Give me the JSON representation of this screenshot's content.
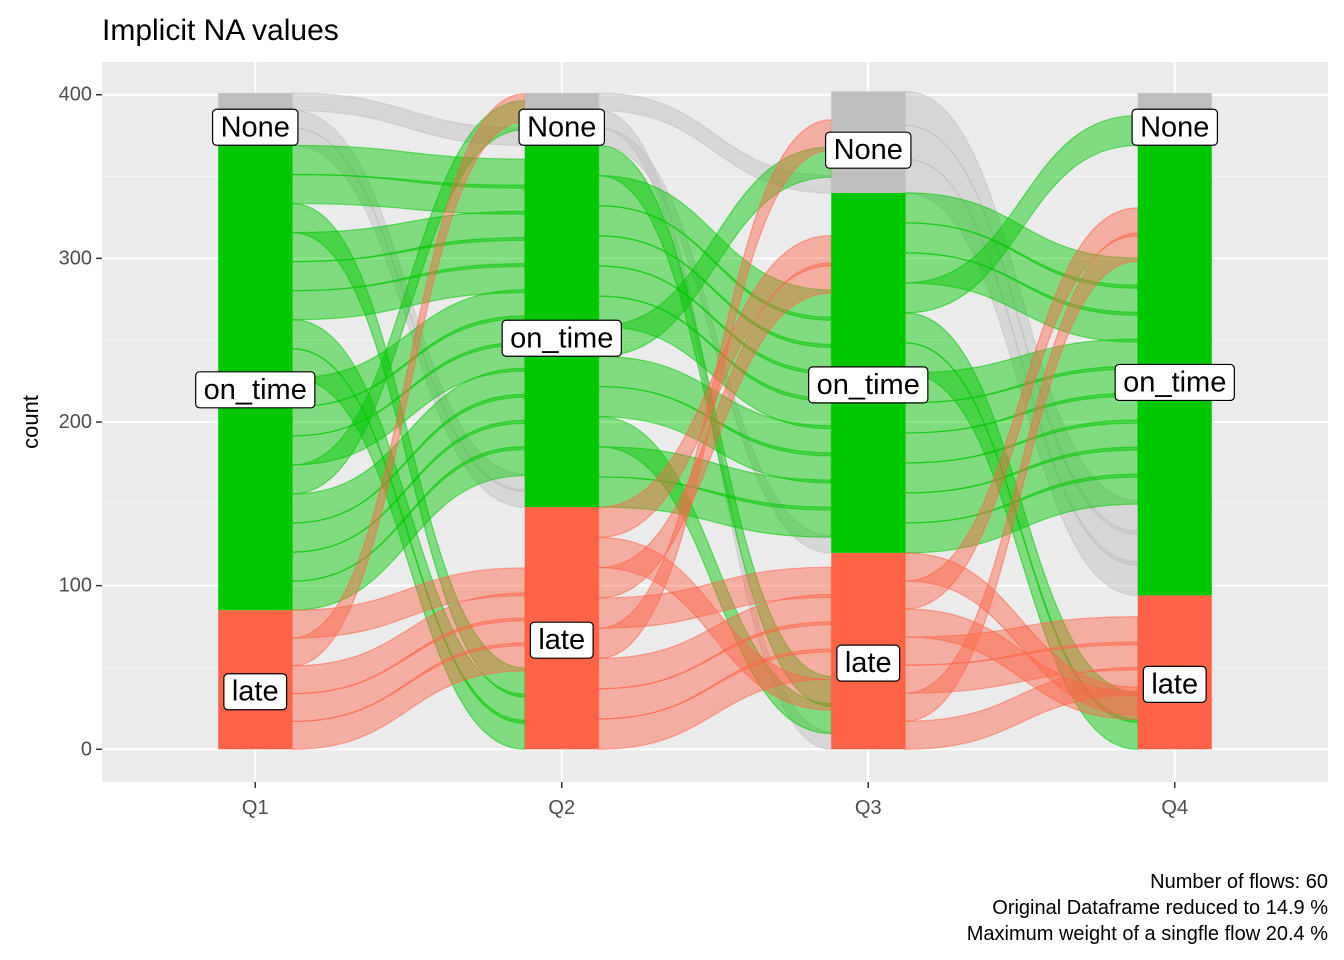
{
  "chart_data": {
    "type": "alluvial",
    "title": "Implicit NA values",
    "xlabel": "",
    "ylabel": "count",
    "ylim": [
      -20,
      420
    ],
    "yticks": [
      0,
      100,
      200,
      300,
      400
    ],
    "categories": [
      "Q1",
      "Q2",
      "Q3",
      "Q4"
    ],
    "stack_order_top_to_bottom": [
      "None",
      "on_time",
      "late"
    ],
    "colors": {
      "None": "#bebebe",
      "on_time": "#00c800",
      "late": "#ff6347"
    },
    "stratum_labels": {
      "None": "None",
      "on_time": "on_time",
      "late": "late"
    },
    "strata": {
      "Q1": {
        "late": 85,
        "on_time": 284,
        "None": 32
      },
      "Q2": {
        "late": 148,
        "on_time": 221,
        "None": 32
      },
      "Q3": {
        "late": 120,
        "on_time": 220,
        "None": 62
      },
      "Q4": {
        "late": 94,
        "on_time": 275,
        "None": 32
      }
    },
    "grid": true,
    "legend": "none",
    "caption": [
      "Number of flows: 60",
      "Original Dataframe reduced to 14.9 %",
      "Maximum weight of a singfle flow 20.4 %"
    ]
  }
}
